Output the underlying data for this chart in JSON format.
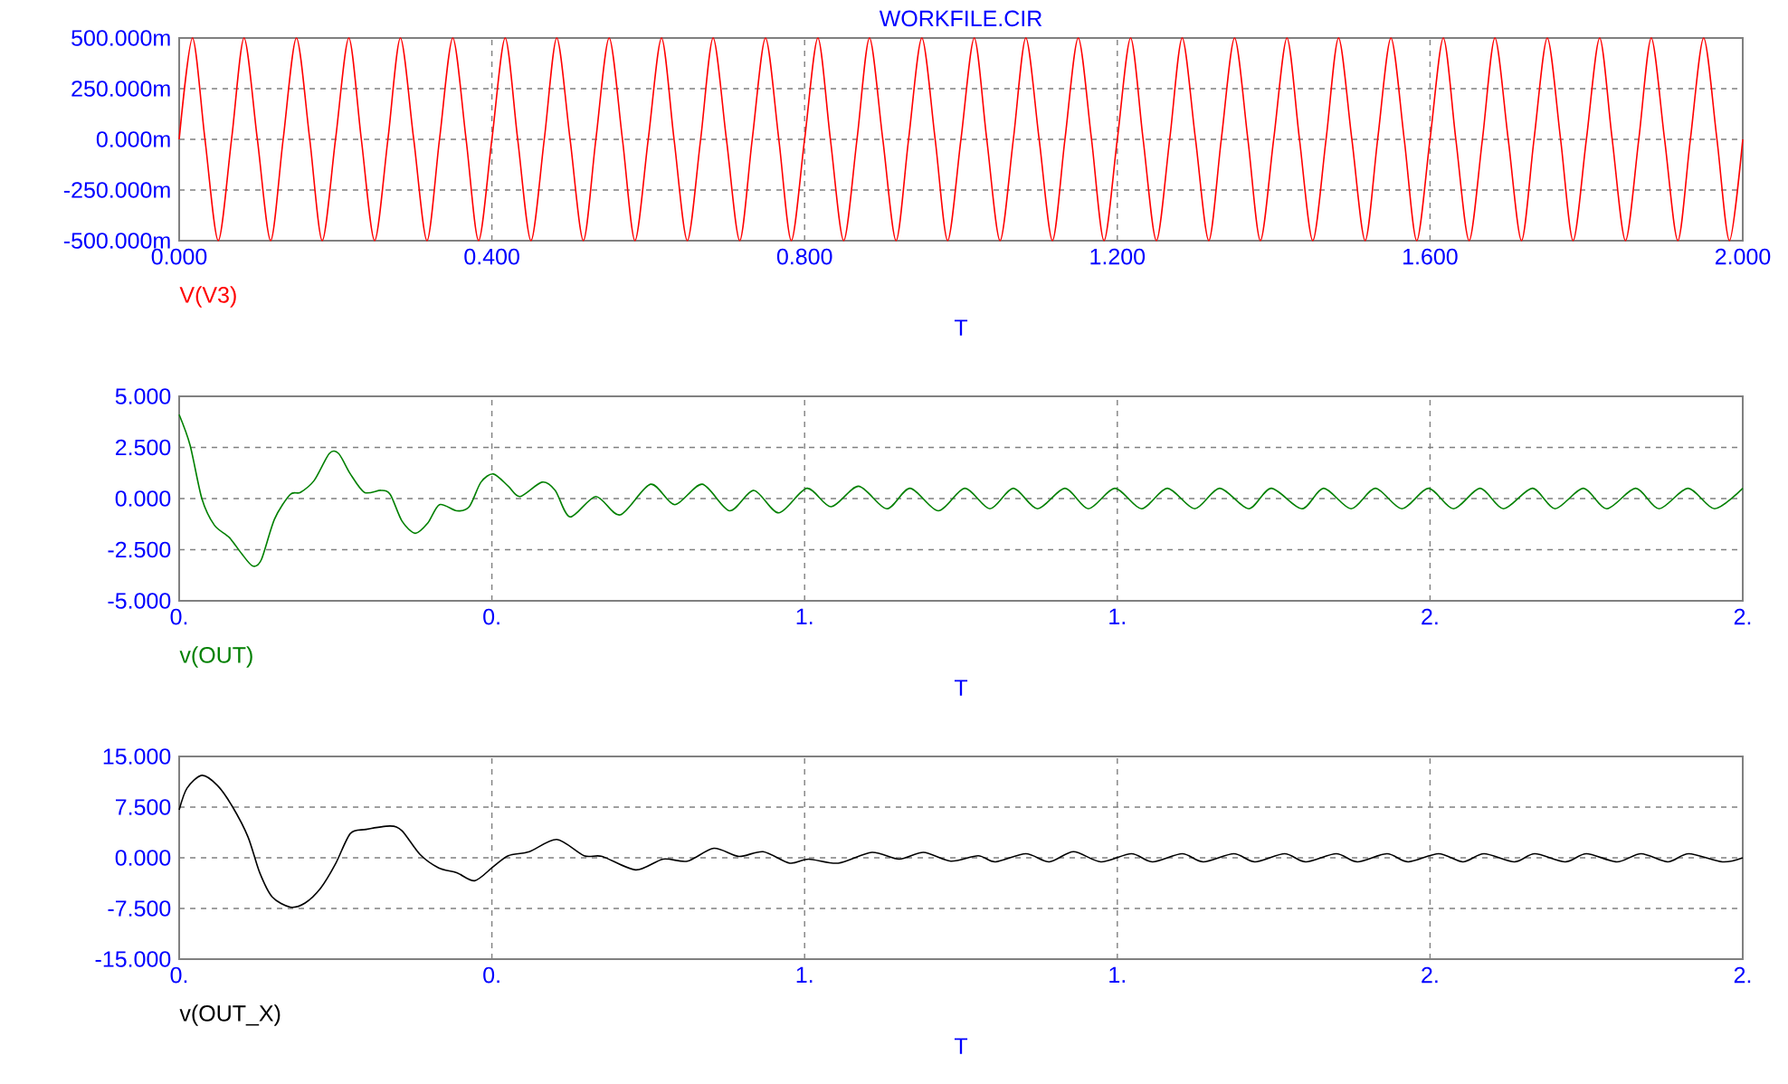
{
  "chart_data": [
    {
      "type": "line",
      "title": "WORKFILE.CIR",
      "xlabel": "T",
      "xlim": [
        0,
        2
      ],
      "ylim": [
        -500,
        500
      ],
      "grid": true,
      "xticks": [
        {
          "value": 0,
          "label": "0.000"
        },
        {
          "value": 0.4,
          "label": "0.400"
        },
        {
          "value": 0.8,
          "label": "0.800"
        },
        {
          "value": 1.2,
          "label": "1.200"
        },
        {
          "value": 1.6,
          "label": "1.600"
        },
        {
          "value": 2,
          "label": "2.000"
        }
      ],
      "yticks": [
        {
          "value": -500,
          "label": "-500.000m"
        },
        {
          "value": -250,
          "label": "-250.000m"
        },
        {
          "value": 0,
          "label": "0.000m"
        },
        {
          "value": 250,
          "label": "250.000m"
        },
        {
          "value": 500,
          "label": "500.000m"
        }
      ],
      "series": [
        {
          "name": "V(V3)",
          "color": "#ff0000",
          "x": [
            0,
            0.017,
            0.033,
            0.05,
            0.067,
            0.083,
            0.1,
            0.117,
            0.133,
            0.15,
            0.167,
            0.183,
            0.2,
            0.217,
            0.233,
            0.25,
            0.267,
            0.283,
            0.3,
            0.317,
            0.333,
            0.35,
            0.367,
            0.383,
            0.4,
            0.417,
            0.433,
            0.45,
            0.467,
            0.483,
            0.5,
            0.517,
            0.533,
            0.55,
            0.567,
            0.583,
            0.6,
            0.617,
            0.633,
            0.65,
            0.667,
            0.683,
            0.7,
            0.717,
            0.733,
            0.75,
            0.767,
            0.783,
            0.8,
            0.817,
            0.833,
            0.85,
            0.867,
            0.883,
            0.9,
            0.917,
            0.933,
            0.95,
            0.967,
            0.983,
            1.0,
            1.017,
            1.033,
            1.05,
            1.067,
            1.083,
            1.1,
            1.117,
            1.133,
            1.15,
            1.167,
            1.183,
            1.2,
            1.217,
            1.233,
            1.25,
            1.267,
            1.283,
            1.3,
            1.317,
            1.333,
            1.35,
            1.367,
            1.383,
            1.4,
            1.417,
            1.433,
            1.45,
            1.467,
            1.483,
            1.5,
            1.517,
            1.533,
            1.55,
            1.567,
            1.583,
            1.6,
            1.617,
            1.633,
            1.65,
            1.667,
            1.683,
            1.7,
            1.717,
            1.733,
            1.75,
            1.767,
            1.783,
            1.8,
            1.817,
            1.833,
            1.85,
            1.867,
            1.883,
            1.9,
            1.917,
            1.933,
            1.95,
            1.967,
            1.983,
            2.0
          ],
          "values": [
            0,
            500,
            0,
            -500,
            0,
            500,
            0,
            -500,
            0,
            500,
            0,
            -500,
            0,
            500,
            0,
            -500,
            0,
            500,
            0,
            -500,
            0,
            500,
            0,
            -500,
            0,
            500,
            0,
            -500,
            0,
            500,
            0,
            -500,
            0,
            500,
            0,
            -500,
            0,
            500,
            0,
            -500,
            0,
            500,
            0,
            -500,
            0,
            500,
            0,
            -500,
            0,
            500,
            0,
            -500,
            0,
            500,
            0,
            -500,
            0,
            500,
            0,
            -500,
            0,
            500,
            0,
            -500,
            0,
            500,
            0,
            -500,
            0,
            500,
            0,
            -500,
            0,
            500,
            0,
            -500,
            0,
            500,
            0,
            -500,
            0,
            500,
            0,
            -500,
            0,
            500,
            0,
            -500,
            0,
            500,
            0,
            -500,
            0,
            500,
            0,
            -500,
            0,
            500,
            0,
            -500,
            0,
            500,
            0,
            -500,
            0,
            500,
            0,
            -500,
            0,
            500,
            0,
            -500,
            0,
            500,
            0,
            -500,
            0,
            500,
            0,
            -500,
            0
          ]
        }
      ]
    },
    {
      "type": "line",
      "xlabel": "T",
      "xlim": [
        0,
        2
      ],
      "ylim": [
        -5,
        5
      ],
      "grid": true,
      "xticks": [
        {
          "value": 0,
          "label": "0."
        },
        {
          "value": 0.4,
          "label": "0."
        },
        {
          "value": 0.8,
          "label": "1."
        },
        {
          "value": 1.2,
          "label": "1."
        },
        {
          "value": 1.6,
          "label": "2."
        },
        {
          "value": 2,
          "label": "2."
        }
      ],
      "yticks": [
        {
          "value": -5,
          "label": "-5.000"
        },
        {
          "value": -2.5,
          "label": "-2.500"
        },
        {
          "value": 0,
          "label": "0.000"
        },
        {
          "value": 2.5,
          "label": "2.500"
        },
        {
          "value": 5,
          "label": "5.000"
        }
      ],
      "series": [
        {
          "name": "v(OUT)",
          "color": "#008000",
          "x": [
            0,
            0.014,
            0.029,
            0.045,
            0.064,
            0.08,
            0.094,
            0.105,
            0.122,
            0.142,
            0.155,
            0.173,
            0.192,
            0.204,
            0.219,
            0.237,
            0.258,
            0.27,
            0.285,
            0.302,
            0.318,
            0.333,
            0.355,
            0.371,
            0.386,
            0.402,
            0.421,
            0.436,
            0.464,
            0.481,
            0.5,
            0.533,
            0.564,
            0.603,
            0.634,
            0.669,
            0.704,
            0.735,
            0.767,
            0.803,
            0.834,
            0.869,
            0.905,
            0.935,
            0.971,
            1.005,
            1.037,
            1.067,
            1.098,
            1.133,
            1.163,
            1.197,
            1.231,
            1.264,
            1.299,
            1.331,
            1.368,
            1.397,
            1.436,
            1.464,
            1.499,
            1.53,
            1.564,
            1.598,
            1.63,
            1.664,
            1.694,
            1.731,
            1.76,
            1.796,
            1.826,
            1.863,
            1.893,
            1.93,
            1.964,
            2.0
          ],
          "values": [
            4.1,
            2.6,
            0.0,
            -1.3,
            -1.9,
            -2.7,
            -3.3,
            -3.0,
            -1.0,
            0.2,
            0.3,
            0.9,
            2.2,
            2.2,
            1.2,
            0.3,
            0.4,
            0.2,
            -1.1,
            -1.7,
            -1.2,
            -0.3,
            -0.6,
            -0.4,
            0.8,
            1.2,
            0.6,
            0.1,
            0.8,
            0.4,
            -0.9,
            0.1,
            -0.8,
            0.7,
            -0.3,
            0.7,
            -0.6,
            0.4,
            -0.7,
            0.5,
            -0.4,
            0.6,
            -0.5,
            0.5,
            -0.6,
            0.5,
            -0.5,
            0.5,
            -0.5,
            0.5,
            -0.5,
            0.5,
            -0.5,
            0.5,
            -0.5,
            0.5,
            -0.5,
            0.5,
            -0.5,
            0.5,
            -0.5,
            0.5,
            -0.5,
            0.5,
            -0.5,
            0.5,
            -0.5,
            0.5,
            -0.5,
            0.5,
            -0.5,
            0.5,
            -0.5,
            0.5,
            -0.5,
            0.5
          ]
        }
      ]
    },
    {
      "type": "line",
      "xlabel": "T",
      "xlim": [
        0,
        2
      ],
      "ylim": [
        -15,
        15
      ],
      "grid": true,
      "xticks": [
        {
          "value": 0,
          "label": "0."
        },
        {
          "value": 0.4,
          "label": "0."
        },
        {
          "value": 0.8,
          "label": "1."
        },
        {
          "value": 1.2,
          "label": "1."
        },
        {
          "value": 1.6,
          "label": "2."
        },
        {
          "value": 2,
          "label": "2."
        }
      ],
      "yticks": [
        {
          "value": -15,
          "label": "-15.000"
        },
        {
          "value": -7.5,
          "label": "-7.500"
        },
        {
          "value": 0,
          "label": "0.000"
        },
        {
          "value": 7.5,
          "label": "7.500"
        },
        {
          "value": 15,
          "label": "15.000"
        }
      ],
      "series": [
        {
          "name": "v(OUT_X)",
          "color": "#000000",
          "x": [
            0,
            0.01,
            0.029,
            0.049,
            0.068,
            0.088,
            0.103,
            0.119,
            0.142,
            0.161,
            0.181,
            0.2,
            0.219,
            0.239,
            0.27,
            0.285,
            0.308,
            0.332,
            0.355,
            0.378,
            0.402,
            0.421,
            0.448,
            0.483,
            0.518,
            0.541,
            0.584,
            0.619,
            0.65,
            0.684,
            0.716,
            0.747,
            0.781,
            0.805,
            0.843,
            0.886,
            0.921,
            0.952,
            0.987,
            1.022,
            1.044,
            1.083,
            1.113,
            1.144,
            1.179,
            1.218,
            1.245,
            1.283,
            1.31,
            1.349,
            1.376,
            1.414,
            1.441,
            1.48,
            1.507,
            1.545,
            1.572,
            1.611,
            1.642,
            1.669,
            1.708,
            1.734,
            1.773,
            1.8,
            1.839,
            1.87,
            1.904,
            1.931,
            1.974,
            2.0
          ],
          "values": [
            7.1,
            10.3,
            12.2,
            10.7,
            7.6,
            3.1,
            -2.2,
            -5.8,
            -7.3,
            -6.7,
            -4.5,
            -0.9,
            3.6,
            4.2,
            4.7,
            4.0,
            0.5,
            -1.5,
            -2.2,
            -3.4,
            -1.3,
            0.3,
            0.9,
            2.7,
            0.3,
            0.2,
            -1.8,
            -0.2,
            -0.5,
            1.4,
            0.2,
            0.9,
            -0.8,
            -0.2,
            -0.8,
            0.8,
            -0.2,
            0.8,
            -0.5,
            0.3,
            -0.6,
            0.6,
            -0.6,
            0.9,
            -0.6,
            0.6,
            -0.6,
            0.6,
            -0.6,
            0.6,
            -0.6,
            0.6,
            -0.6,
            0.6,
            -0.6,
            0.6,
            -0.6,
            0.6,
            -0.6,
            0.6,
            -0.6,
            0.6,
            -0.6,
            0.6,
            -0.6,
            0.6,
            -0.6,
            0.6,
            -0.6,
            0
          ]
        }
      ]
    }
  ]
}
